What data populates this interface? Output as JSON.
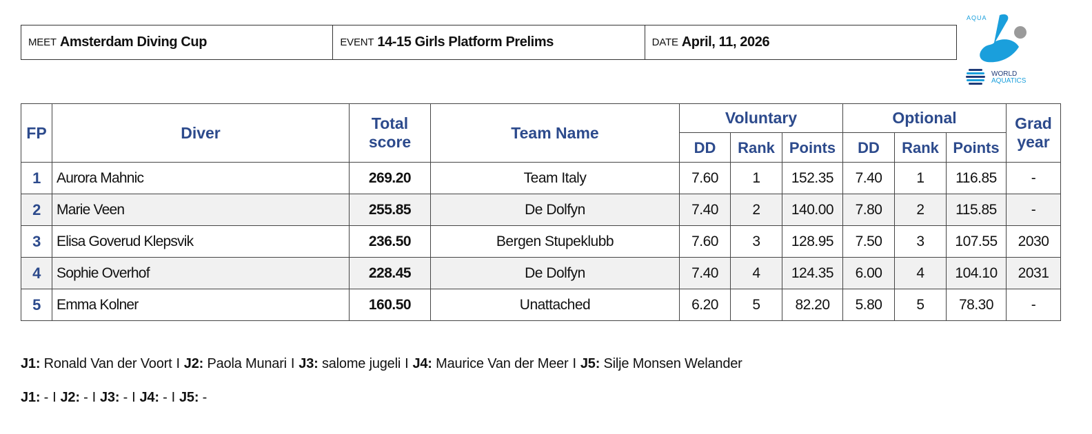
{
  "header": {
    "meet_label": "MEET",
    "meet_value": "Amsterdam Diving Cup",
    "event_label": "EVENT",
    "event_value": "14-15 Girls Platform Prelims",
    "date_label": "DATE",
    "date_value": "April, 11, 2026"
  },
  "logo": {
    "top_text": "AQUA",
    "line1": "WORLD",
    "line2": "AQUATICS",
    "colors": {
      "primary": "#1a9fdc",
      "dark": "#1e3a78",
      "gray": "#9a9a9a"
    }
  },
  "table": {
    "columns": {
      "fp": "FP",
      "diver": "Diver",
      "total_l1": "Total",
      "total_l2": "score",
      "team": "Team Name",
      "voluntary": "Voluntary",
      "optional": "Optional",
      "dd": "DD",
      "rank": "Rank",
      "points": "Points",
      "grad_l1": "Grad",
      "grad_l2": "year"
    },
    "rows": [
      {
        "fp": "1",
        "diver": "Aurora Mahnic",
        "total": "269.20",
        "team": "Team Italy",
        "v_dd": "7.60",
        "v_rank": "1",
        "v_points": "152.35",
        "o_dd": "7.40",
        "o_rank": "1",
        "o_points": "116.85",
        "grad": "-"
      },
      {
        "fp": "2",
        "diver": "Marie Veen",
        "total": "255.85",
        "team": "De Dolfyn",
        "v_dd": "7.40",
        "v_rank": "2",
        "v_points": "140.00",
        "o_dd": "7.80",
        "o_rank": "2",
        "o_points": "115.85",
        "grad": "-"
      },
      {
        "fp": "3",
        "diver": "Elisa Goverud Klepsvik",
        "total": "236.50",
        "team": "Bergen Stupeklubb",
        "v_dd": "7.60",
        "v_rank": "3",
        "v_points": "128.95",
        "o_dd": "7.50",
        "o_rank": "3",
        "o_points": "107.55",
        "grad": "2030"
      },
      {
        "fp": "4",
        "diver": "Sophie Overhof",
        "total": "228.45",
        "team": "De Dolfyn",
        "v_dd": "7.40",
        "v_rank": "4",
        "v_points": "124.35",
        "o_dd": "6.00",
        "o_rank": "4",
        "o_points": "104.10",
        "grad": "2031"
      },
      {
        "fp": "5",
        "diver": "Emma Kolner",
        "total": "160.50",
        "team": "Unattached",
        "v_dd": "6.20",
        "v_rank": "5",
        "v_points": "82.20",
        "o_dd": "5.80",
        "o_rank": "5",
        "o_points": "78.30",
        "grad": "-"
      }
    ]
  },
  "judges": {
    "separator": "I",
    "line1": [
      {
        "label": "J1:",
        "name": "Ronald Van der Voort"
      },
      {
        "label": "J2:",
        "name": "Paola Munari"
      },
      {
        "label": "J3:",
        "name": "salome jugeli"
      },
      {
        "label": "J4:",
        "name": "Maurice Van der Meer"
      },
      {
        "label": "J5:",
        "name": "Silje Monsen Welander"
      }
    ],
    "line2": [
      {
        "label": "J1:",
        "name": "-"
      },
      {
        "label": "J2:",
        "name": "-"
      },
      {
        "label": "J3:",
        "name": "-"
      },
      {
        "label": "J4:",
        "name": "-"
      },
      {
        "label": "J5:",
        "name": "-"
      }
    ]
  }
}
